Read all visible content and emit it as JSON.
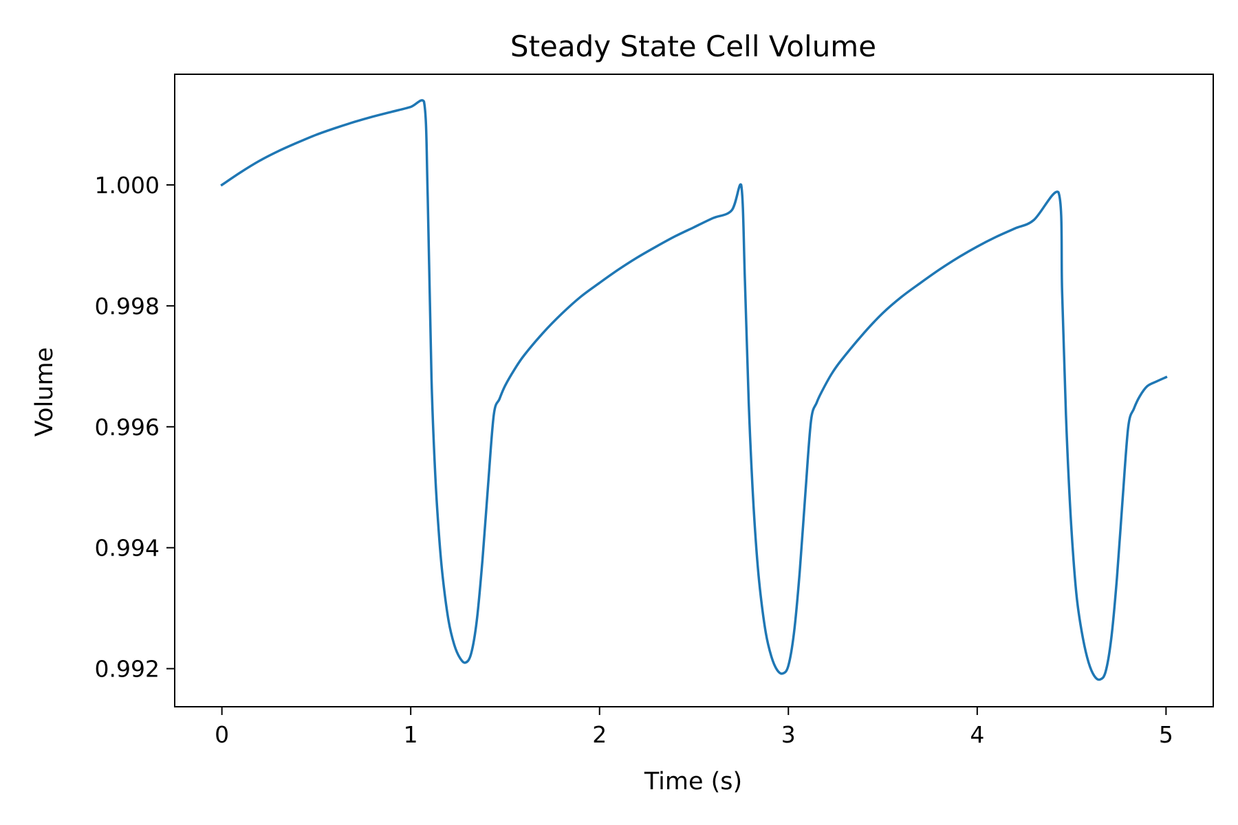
{
  "chart_data": {
    "type": "line",
    "title": "Steady State Cell Volume",
    "xlabel": "Time (s)",
    "ylabel": "Volume",
    "xlim": [
      -0.25,
      5.25
    ],
    "ylim": [
      0.99137,
      1.00183
    ],
    "grid": false,
    "x_ticks": [
      0,
      1,
      2,
      3,
      4,
      5
    ],
    "x_tick_labels": [
      "0",
      "1",
      "2",
      "3",
      "4",
      "5"
    ],
    "y_ticks": [
      0.992,
      0.994,
      0.996,
      0.998,
      1.0
    ],
    "y_tick_labels": [
      "0.992",
      "0.994",
      "0.996",
      "0.998",
      "1.000"
    ],
    "colors": {
      "line": "#1f77b4"
    },
    "series": [
      {
        "x": [
          0,
          0.1,
          0.2,
          0.3,
          0.4,
          0.5,
          0.6,
          0.7,
          0.8,
          0.9,
          1.0,
          1.07,
          1.09,
          1.11,
          1.13,
          1.15,
          1.17,
          1.2,
          1.23,
          1.26,
          1.29,
          1.32,
          1.35,
          1.38,
          1.41,
          1.44,
          1.47,
          1.5,
          1.55,
          1.6,
          1.7,
          1.8,
          1.9,
          2.0,
          2.1,
          2.2,
          2.3,
          2.4,
          2.5,
          2.6,
          2.7,
          2.75,
          2.77,
          2.79,
          2.81,
          2.83,
          2.85,
          2.88,
          2.91,
          2.94,
          2.97,
          3.0,
          3.03,
          3.06,
          3.09,
          3.12,
          3.15,
          3.18,
          3.23,
          3.28,
          3.4,
          3.5,
          3.6,
          3.7,
          3.8,
          3.9,
          4.0,
          4.1,
          4.2,
          4.3,
          4.43,
          4.45,
          4.47,
          4.49,
          4.51,
          4.53,
          4.56,
          4.59,
          4.62,
          4.65,
          4.68,
          4.71,
          4.74,
          4.77,
          4.8,
          4.83,
          4.86,
          4.9,
          4.95,
          5.0
        ],
        "y": [
          1.0,
          1.00021,
          1.0004,
          1.00056,
          1.0007,
          1.00083,
          1.00094,
          1.00104,
          1.00113,
          1.00121,
          1.00129,
          1.00138,
          0.9998,
          0.9968,
          0.9952,
          0.9942,
          0.9935,
          0.9928,
          0.9924,
          0.99218,
          0.9921,
          0.99225,
          0.9928,
          0.9938,
          0.99505,
          0.9962,
          0.99646,
          0.99668,
          0.99695,
          0.99718,
          0.99755,
          0.99787,
          0.99815,
          0.99838,
          0.9986,
          0.9988,
          0.99898,
          0.99915,
          0.9993,
          0.99945,
          0.99958,
          1.0,
          0.9984,
          0.9964,
          0.995,
          0.994,
          0.9933,
          0.9926,
          0.9922,
          0.99198,
          0.99192,
          0.99205,
          0.9926,
          0.9936,
          0.9949,
          0.9961,
          0.9964,
          0.9966,
          0.99688,
          0.9971,
          0.99755,
          0.99788,
          0.99815,
          0.99838,
          0.9986,
          0.9988,
          0.99898,
          0.99914,
          0.99928,
          0.99942,
          0.99988,
          0.9982,
          0.9962,
          0.9948,
          0.9938,
          0.9931,
          0.9925,
          0.9921,
          0.99188,
          0.99182,
          0.99195,
          0.9925,
          0.9935,
          0.9948,
          0.996,
          0.9963,
          0.9965,
          0.99667,
          0.99675,
          0.99682
        ]
      }
    ]
  }
}
